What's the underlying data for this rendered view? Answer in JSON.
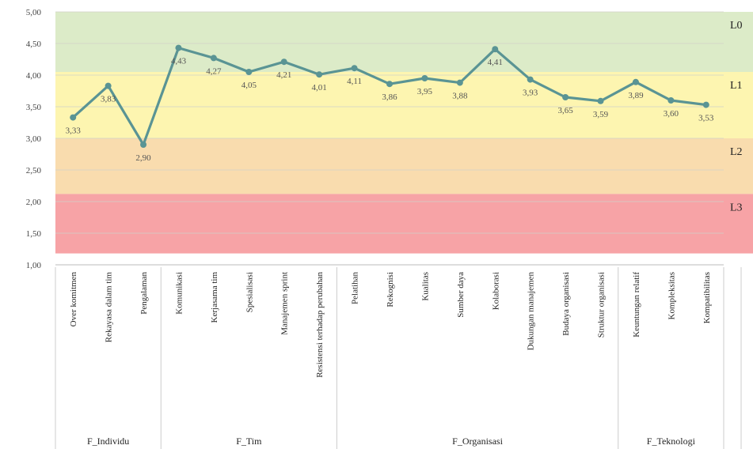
{
  "chart_data": {
    "type": "line",
    "title": "",
    "xlabel": "",
    "ylabel": "",
    "ylim": [
      1.0,
      5.0
    ],
    "yticks": [
      "1,00",
      "1,50",
      "2,00",
      "2,50",
      "3,00",
      "3,50",
      "4,00",
      "4,50",
      "5,00"
    ],
    "ytick_values": [
      1.0,
      1.5,
      2.0,
      2.5,
      3.0,
      3.5,
      4.0,
      4.5,
      5.0
    ],
    "grid": true,
    "categories": [
      "Over komitmen",
      "Rekayasa dalam tim",
      "Pengalaman",
      "Komunikasi",
      "Kerjasama tim",
      "Spesialisasi",
      "Manajemen sprint",
      "Resistensi terhadap perubahan",
      "Pelatihan",
      "Rekognisi",
      "Kualitas",
      "Sumber daya",
      "Kolaborasi",
      "Dukungan manajemen",
      "Budaya organisasi",
      "Struktur organisasi",
      "Keuntungan relatif",
      "Kompleksitas",
      "Kompatibilitas"
    ],
    "groups": [
      {
        "name": "F_Individu",
        "count": 3
      },
      {
        "name": "F_Tim",
        "count": 5
      },
      {
        "name": "F_Organisasi",
        "count": 8
      },
      {
        "name": "F_Teknologi",
        "count": 3
      }
    ],
    "values": [
      3.33,
      3.83,
      2.9,
      4.43,
      4.27,
      4.05,
      4.21,
      4.01,
      4.11,
      3.86,
      3.95,
      3.88,
      4.41,
      3.93,
      3.65,
      3.59,
      3.89,
      3.6,
      3.53
    ],
    "value_labels": [
      "3,33",
      "3,83",
      "2,90",
      "4,43",
      "4,27",
      "4,05",
      "4,21",
      "4,01",
      "4,11",
      "3,86",
      "3,95",
      "3,88",
      "4,41",
      "3,93",
      "3,65",
      "3,59",
      "3,89",
      "3,60",
      "3,53"
    ],
    "bands": [
      {
        "label": "L0",
        "from": 4.05,
        "to": 5.0,
        "color": "#dcebc8"
      },
      {
        "label": "L1",
        "from": 3.0,
        "to": 4.05,
        "color": "#fdf5b0"
      },
      {
        "label": "L2",
        "from": 2.12,
        "to": 3.0,
        "color": "#f9dcae"
      },
      {
        "label": "L3",
        "from": 1.18,
        "to": 2.12,
        "color": "#f7a3a6"
      }
    ],
    "line_color": "#5a9494"
  }
}
